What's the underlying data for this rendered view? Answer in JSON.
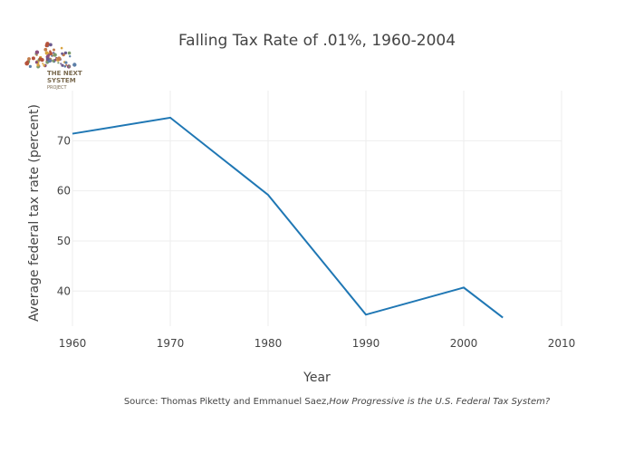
{
  "chart_data": {
    "type": "line",
    "title": "Falling Tax Rate of .01%, 1960-2004",
    "xlabel": "Year",
    "ylabel": "Average federal tax rate (percent)",
    "xlim": [
      1960,
      2010
    ],
    "ylim": [
      33,
      80
    ],
    "x_ticks": [
      1960,
      1970,
      1980,
      1990,
      2000,
      2010
    ],
    "y_ticks": [
      40,
      50,
      60,
      70
    ],
    "grid": true,
    "series": [
      {
        "color": "#1f77b4",
        "x": [
          1960,
          1970,
          1980,
          1990,
          2000,
          2004
        ],
        "y": [
          71.4,
          74.6,
          59.2,
          35.3,
          40.7,
          34.7
        ]
      }
    ],
    "source_prefix": "Source:  Thomas Piketty and Emmanuel Saez,",
    "source_title": "How Progressive is the U.S. Federal Tax System?"
  },
  "logo": {
    "line1": "THE NEXT",
    "line2": "SYSTEM",
    "line3": "PROJECT"
  }
}
